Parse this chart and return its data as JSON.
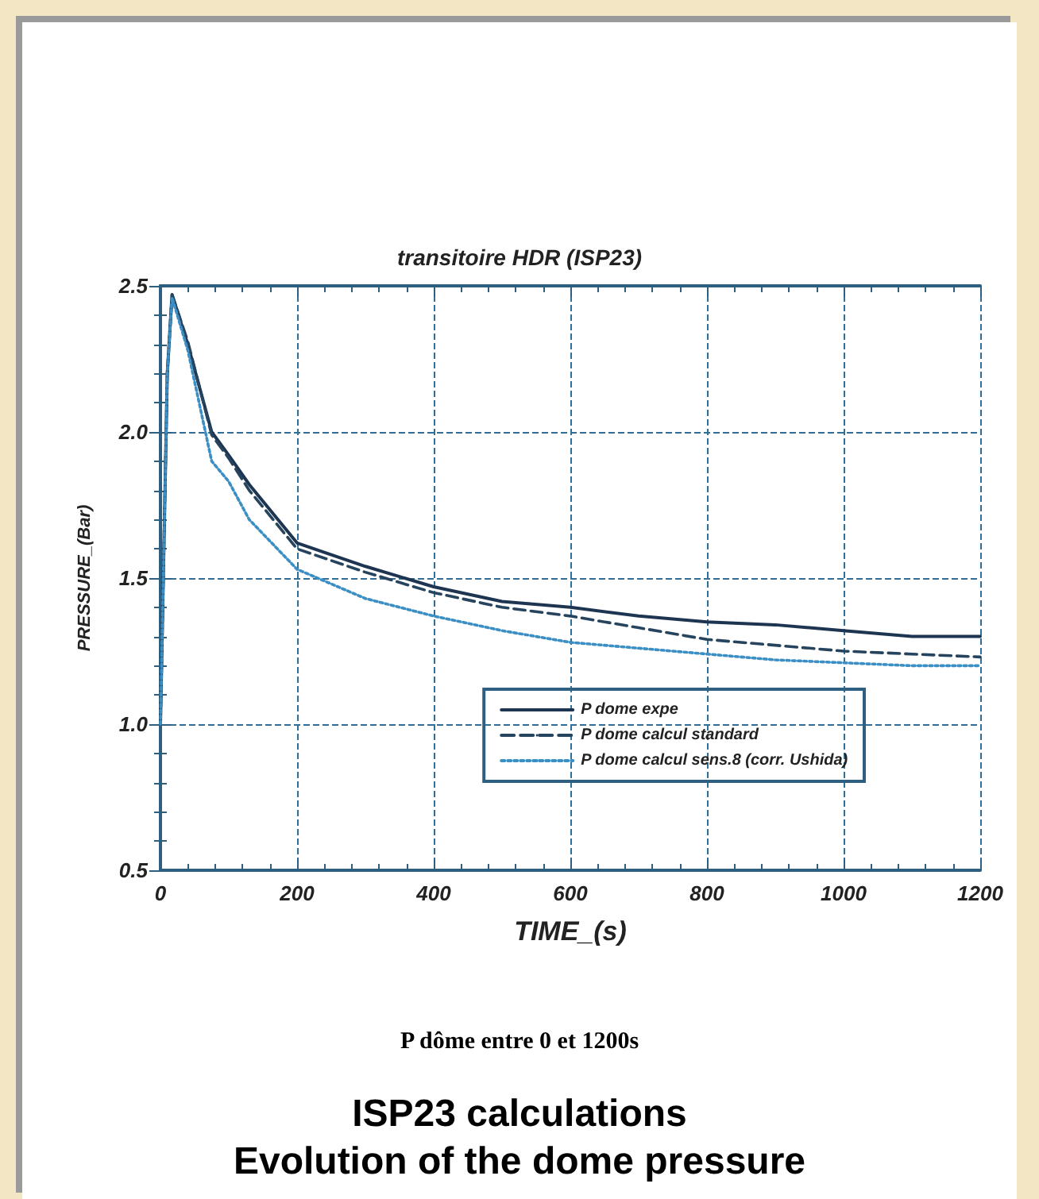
{
  "chart_data": {
    "type": "line",
    "title": "transitoire HDR (ISP23)",
    "xlabel": "TIME_(s)",
    "ylabel": "PRESSURE_(Bar)",
    "annotations": [
      "P dôme entre 0 et 1200s",
      "ISP23 calculations",
      "Evolution of the dome pressure"
    ],
    "x": [
      0,
      10,
      17,
      40,
      75,
      100,
      130,
      200,
      300,
      400,
      500,
      600,
      700,
      800,
      900,
      1000,
      1100,
      1200
    ],
    "series": [
      {
        "name": "P dome expe",
        "color": "#1d3550",
        "line_style": "solid",
        "values": [
          1.0,
          2.2,
          2.47,
          2.3,
          2.0,
          1.92,
          1.82,
          1.62,
          1.54,
          1.47,
          1.42,
          1.4,
          1.37,
          1.35,
          1.34,
          1.32,
          1.3,
          1.3
        ]
      },
      {
        "name": "P dome calcul standard",
        "color": "#27445f",
        "line_style": "dashed",
        "values": [
          1.0,
          2.2,
          2.47,
          2.31,
          1.99,
          1.91,
          1.8,
          1.6,
          1.52,
          1.45,
          1.4,
          1.37,
          1.33,
          1.29,
          1.27,
          1.25,
          1.24,
          1.23
        ]
      },
      {
        "name": "P dome calcul sens.8 (corr. Ushida)",
        "color": "#3b8fc4",
        "line_style": "dotted",
        "values": [
          1.0,
          2.2,
          2.46,
          2.28,
          1.9,
          1.83,
          1.7,
          1.53,
          1.43,
          1.37,
          1.32,
          1.28,
          1.26,
          1.24,
          1.22,
          1.21,
          1.2,
          1.2
        ]
      }
    ],
    "xlim": [
      0,
      1200
    ],
    "xticks": [
      0,
      200,
      400,
      600,
      800,
      1000,
      1200
    ],
    "ylim": [
      0.5,
      2.5
    ],
    "yticks": [
      0.5,
      {
        "value": 1,
        "label": "1.0"
      },
      1.5,
      {
        "value": 2,
        "label": "2.0"
      },
      2.5
    ],
    "grid": true,
    "legend": "bottom right",
    "marker": "none"
  }
}
